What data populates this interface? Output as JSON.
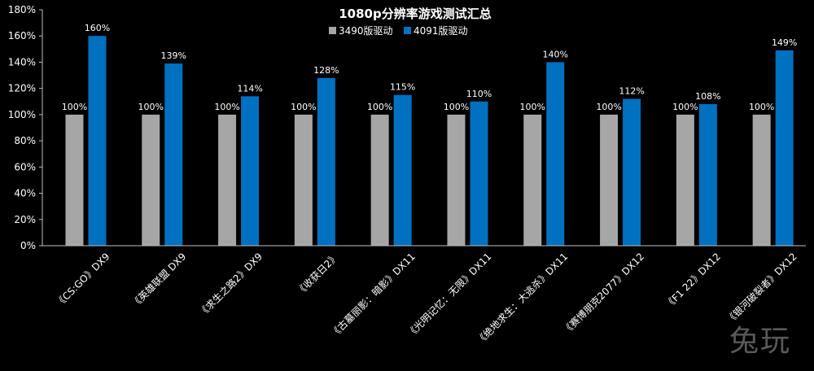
{
  "chart_data": {
    "type": "bar",
    "title": "1080p分辨率游戏测试汇总",
    "categories": [
      "《CS:GO》DX9",
      "《英雄联盟 DX9",
      "《求生之路2》DX9",
      "《收获日2》",
      "《古墓丽影：暗影》DX11",
      "《光明记忆：无限》DX11",
      "《绝地求生：大逃杀》DX11",
      "《赛博朋克2077》DX12",
      "《F1 22》DX12",
      "《银河破裂者》DX12"
    ],
    "series": [
      {
        "name": "3490版驱动",
        "color": "#a6a6a6",
        "values": [
          100,
          100,
          100,
          100,
          100,
          100,
          100,
          100,
          100,
          100
        ]
      },
      {
        "name": "4091版驱动",
        "color": "#0070c0",
        "values": [
          160,
          139,
          114,
          128,
          115,
          110,
          140,
          112,
          108,
          149
        ]
      }
    ],
    "data_labels": [
      [
        "100%",
        "100%",
        "100%",
        "100%",
        "100%",
        "100%",
        "100%",
        "100%",
        "100%",
        "100%"
      ],
      [
        "160%",
        "139%",
        "114%",
        "128%",
        "115%",
        "110%",
        "140%",
        "112%",
        "108%",
        "149%"
      ]
    ],
    "y_ticks": [
      0,
      20,
      40,
      60,
      80,
      100,
      120,
      140,
      160,
      180
    ],
    "y_tick_labels": [
      "0%",
      "20%",
      "40%",
      "60%",
      "80%",
      "100%",
      "120%",
      "140%",
      "160%",
      "180%"
    ],
    "ylim": [
      0,
      180
    ],
    "grid": false,
    "legend_position": "top-center",
    "background": "#000000",
    "text_color": "#ffffff"
  },
  "watermark": "兔玩"
}
